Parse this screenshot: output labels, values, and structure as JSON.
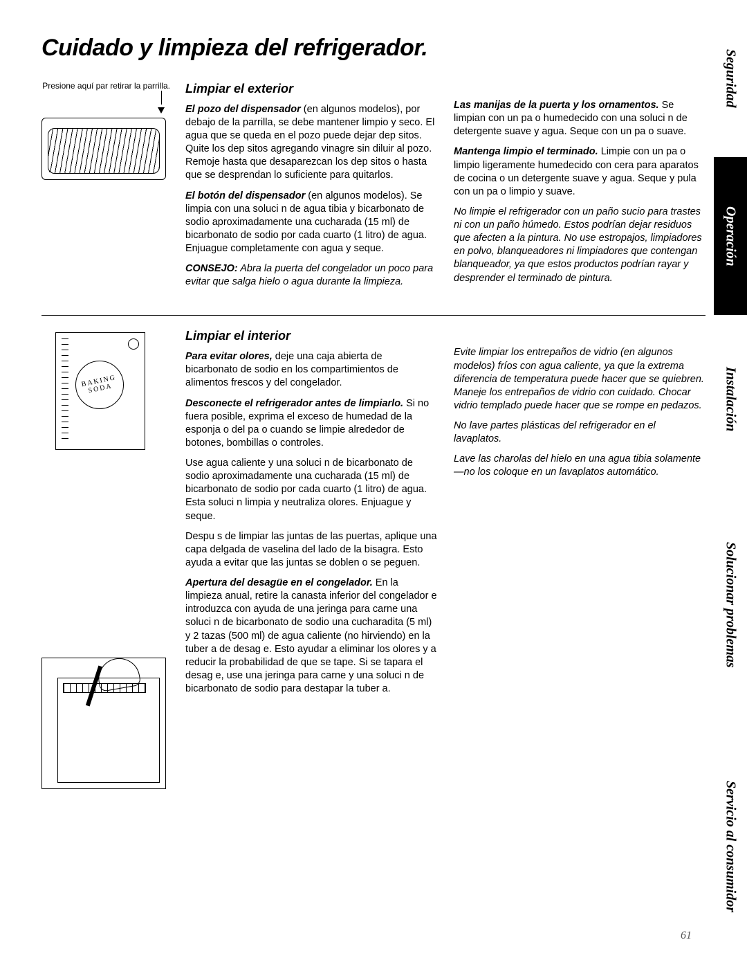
{
  "title": "Cuidado y limpieza del refrigerador.",
  "page_number": "61",
  "colors": {
    "text": "#000000",
    "bg": "#ffffff",
    "tab_dark_bg": "#000000",
    "tab_dark_fg": "#ffffff",
    "pagenum": "#555555"
  },
  "tabs": [
    {
      "label": "Seguridad",
      "style": "light",
      "flex": 1.1
    },
    {
      "label": "Operación",
      "style": "dark",
      "flex": 1.1
    },
    {
      "label": "Instalación",
      "style": "light",
      "flex": 1.2
    },
    {
      "label": "Solucionar problemas",
      "style": "light",
      "flex": 1.8
    },
    {
      "label": "Servicio al consumidor",
      "style": "light",
      "flex": 1.8
    }
  ],
  "section1": {
    "heading": "Limpiar el exterior",
    "caption": "Presione aquí par retirar la parrilla.",
    "left": {
      "p1_lead": "El pozo del dispensador",
      "p1_rest": " (en algunos modelos), por debajo de la parrilla, se debe mantener limpio y seco. El agua que se queda en el pozo puede dejar dep sitos. Quite los dep sitos agregando vinagre sin diluir al pozo. Remoje hasta que desaparezcan los dep sitos o hasta que se desprendan lo suficiente para quitarlos.",
      "p2_lead": "El botón del dispensador",
      "p2_rest": " (en algunos modelos). Se limpia con una soluci n de agua tibia y bicarbonato de sodio aproximadamente una cucharada (15 ml) de bicarbonato de sodio por cada cuarto (1 litro) de agua. Enjuague completamente con agua y seque.",
      "p3_lead": "CONSEJO:",
      "p3_rest": " Abra la puerta del congelador un poco para evitar que salga hielo o agua durante la limpieza."
    },
    "right": {
      "p1_lead": "Las manijas de la puerta y los ornamentos.",
      "p1_rest": " Se limpian con un pa o humedecido con una soluci n de detergente suave y agua. Seque con un pa o suave.",
      "p2_lead": "Mantenga limpio el terminado.",
      "p2_rest": " Limpie con un pa o limpio ligeramente humedecido con cera para aparatos de cocina o un detergente suave y agua. Seque y pula con un pa o limpio y suave.",
      "p3": "No limpie el refrigerador con un paño sucio para trastes ni con un paño húmedo. Estos podrían dejar residuos que afecten a la pintura. No use estropajos, limpiadores en polvo, blanqueadores ni limpiadores que contengan blanqueador, ya que estos productos podrían rayar y desprender el terminado de pintura."
    }
  },
  "section2": {
    "heading": "Limpiar el interior",
    "box_text": "BAKING SODA",
    "left": {
      "p1_lead": "Para evitar olores,",
      "p1_rest": " deje una caja abierta de bicarbonato de sodio en los compartimientos de alimentos frescos y del congelador.",
      "p2_lead": "Desconecte el refrigerador antes de limpiarlo.",
      "p2_rest": " Si no fuera posible, exprima el exceso de humedad de la esponja o del pa o cuando se limpie alrededor de botones, bombillas o controles.",
      "p3": "Use agua caliente y una soluci n de bicarbonato de sodio aproximadamente una cucharada (15 ml) de bicarbonato de sodio por cada cuarto (1 litro) de agua. Esta soluci n limpia y neutraliza olores. Enjuague y seque.",
      "p4": "Despu s de limpiar las juntas de las puertas, aplique una capa delgada de vaselina del lado de la bisagra. Esto ayuda a evitar que las juntas se doblen o se peguen.",
      "p5_lead": "Apertura del desagüe en el congelador.",
      "p5_rest": " En la limpieza anual, retire la canasta inferior del congelador e introduzca con ayuda de una jeringa para carne una soluci n de bicarbonato de sodio una cucharadita (5 ml) y 2 tazas (500 ml) de agua caliente (no hirviendo) en la tuber a de desag e. Esto ayudar  a eliminar los olores y a reducir la probabilidad de que se tape. Si se tapara el desag e, use una jeringa para carne y una soluci n de bicarbonato de sodio para destapar la tuber a."
    },
    "right": {
      "p1": "Evite limpiar los entrepaños de vidrio (en algunos modelos) fríos con agua caliente, ya que la extrema diferencia de temperatura puede hacer que se quiebren. Maneje los entrepaños de vidrio con cuidado. Chocar vidrio templado puede hacer que se rompe en pedazos.",
      "p2": "No lave partes plásticas del refrigerador en el lavaplatos.",
      "p3": "Lave las charolas del hielo en una agua tibia solamente—no los coloque en un lavaplatos automático."
    }
  }
}
